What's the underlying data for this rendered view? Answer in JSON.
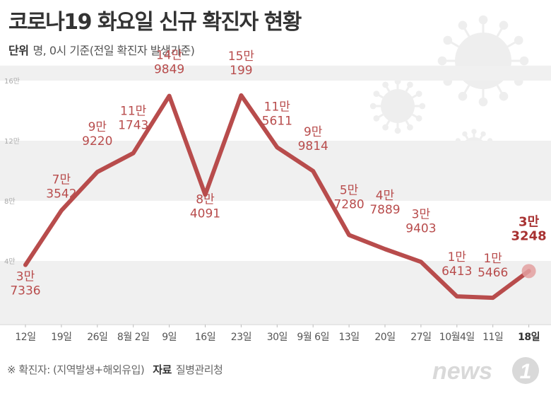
{
  "header": {
    "title": "코로나19 화요일 신규 확진자 현황",
    "unit_label": "단위",
    "unit_text": "명, 0시 기준(전일 확진자 발생기준)"
  },
  "colors": {
    "line": "#b84c4c",
    "label": "#b84c4c",
    "highlight_label": "#a83232",
    "band": "#f0f0f0",
    "axis_text": "#555555"
  },
  "chart_data": {
    "type": "line",
    "title": "코로나19 화요일 신규 확진자 현황",
    "ylabel": "명",
    "xlabel": "",
    "ylim": [
      0,
      170000
    ],
    "y_ticks": [
      {
        "value": 40000,
        "label": "4만"
      },
      {
        "value": 80000,
        "label": "8만"
      },
      {
        "value": 120000,
        "label": "12만"
      },
      {
        "value": 160000,
        "label": "16만"
      }
    ],
    "grid_bands": true,
    "categories": [
      "12일",
      "19일",
      "26일",
      "8월 2일",
      "9일",
      "16일",
      "23일",
      "30일",
      "9월 6일",
      "13일",
      "20일",
      "27일",
      "10월4일",
      "11일",
      "18일"
    ],
    "values": [
      37336,
      73542,
      99220,
      111743,
      149849,
      84091,
      150199,
      115611,
      99814,
      57280,
      47889,
      39403,
      16413,
      15466,
      33248
    ],
    "label_top": [
      "3만",
      "7만",
      "9만",
      "11만",
      "14만",
      "8만",
      "15만",
      "11만",
      "9만",
      "5만",
      "4만",
      "3만",
      "1만",
      "1만",
      "3만"
    ],
    "label_bottom": [
      "7336",
      "3542",
      "9220",
      "1743",
      "9849",
      "4091",
      "199",
      "5611",
      "9814",
      "7280",
      "7889",
      "9403",
      "6413",
      "5466",
      "3248"
    ],
    "highlight_index": 14
  },
  "footer": {
    "note": "※ 확진자: (지역발생+해외유입)",
    "source_label": "자료",
    "source": "질병관리청",
    "logo_text": "news",
    "logo_mark": "1"
  }
}
